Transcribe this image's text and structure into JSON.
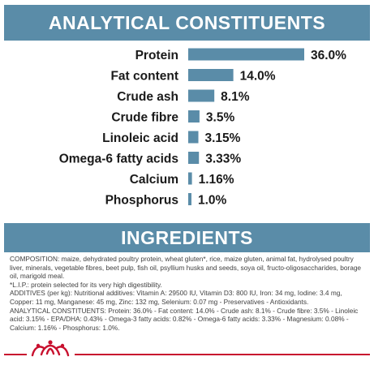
{
  "sections": {
    "analytical_title": "ANALYTICAL CONSTITUENTS",
    "ingredients_title": "INGREDIENTS"
  },
  "colors": {
    "banner": "#5a8ca8",
    "bar": "#5a8ca8",
    "text": "#1a1a1a",
    "brand_red": "#c8102e"
  },
  "chart_data": {
    "type": "bar",
    "orientation": "horizontal",
    "categories": [
      "Protein",
      "Fat content",
      "Crude ash",
      "Crude fibre",
      "Linoleic acid",
      "Omega-6 fatty acids",
      "Calcium",
      "Phosphorus"
    ],
    "values": [
      36.0,
      14.0,
      8.1,
      3.5,
      3.15,
      3.33,
      1.16,
      1.0
    ],
    "value_labels": [
      "36.0%",
      "14.0%",
      "8.1%",
      "3.5%",
      "3.15%",
      "3.33%",
      "1.16%",
      "1.0%"
    ],
    "grid": false,
    "legend": "none"
  },
  "ingredients": {
    "lines": [
      "COMPOSITION: maize, dehydrated poultry protein, wheat gluten*, rice, maize gluten, animal fat, hydrolysed poultry liver, minerals, vegetable fibres, beet pulp, fish oil, psyllium husks and seeds, soya oil, fructo-oligosaccharides, borage oil, marigold meal.",
      "*L.I.P.: protein selected for its very high digestibility.",
      "ADDITIVES (per kg): Nutritional additives: Vitamin A: 29500 IU, Vitamin D3: 800 IU, Iron: 34 mg, Iodine: 3.4 mg, Copper: 11 mg, Manganese: 45 mg, Zinc: 132 mg, Selenium: 0.07 mg - Preservatives - Antioxidants.",
      "ANALYTICAL CONSTITUENTS: Protein: 36.0% - Fat content: 14.0% - Crude ash: 8.1% - Crude fibre: 3.5% - Linoleic acid: 3.15% - EPA/DHA: 0.43% - Omega-3 fatty acids: 0.82% - Omega-6 fatty acids: 3.33% - Magnesium: 0.08% - Calcium: 1.16% - Phosphorus: 1.0%."
    ]
  },
  "logo": {
    "icon": "royal-canin-crown-icon"
  }
}
